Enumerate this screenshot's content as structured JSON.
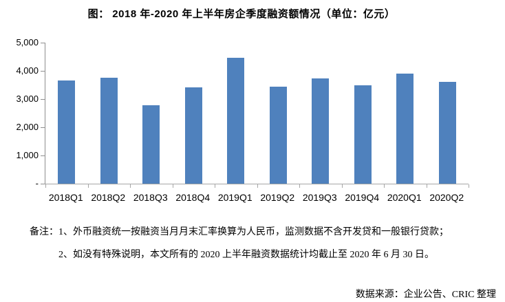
{
  "title": "图：  2018 年-2020 年上半年房企季度融资额情况（单位：亿元）",
  "chart_data": {
    "type": "bar",
    "title": "2018年-2020年上半年房企季度融资额情况",
    "unit": "亿元",
    "categories": [
      "2018Q1",
      "2018Q2",
      "2018Q3",
      "2018Q4",
      "2019Q1",
      "2019Q2",
      "2019Q3",
      "2019Q4",
      "2020Q1",
      "2020Q2"
    ],
    "values": [
      3670,
      3760,
      2770,
      3410,
      4460,
      3450,
      3740,
      3490,
      3900,
      3620
    ],
    "xlabel": "",
    "ylabel": "",
    "ylim": [
      0,
      5000
    ],
    "ytick_interval": 1000,
    "ytick_labels_top_to_bottom": [
      "5,000",
      "4,000",
      "3,000",
      "2,000",
      "1,000",
      "-"
    ],
    "grid": false,
    "legend": "none",
    "bar_color": "#4f81bd",
    "axis_color": "#8e8e8e"
  },
  "notes": {
    "line1": "备注：1、外币融资统一按融资当月月末汇率换算为人民币，监测数据不含开发贷和一般银行贷款；",
    "line2": "2、如没有特殊说明，本文所有的 2020 上半年融资数据统计均截止至 2020 年 6 月 30 日。"
  },
  "source": "数据来源：企业公告、CRIC 整理"
}
